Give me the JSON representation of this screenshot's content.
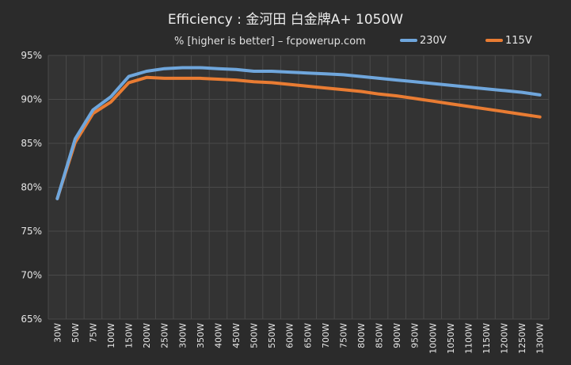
{
  "chart_data": {
    "type": "line",
    "title": "Efficiency : 金河田 白金牌A+ 1050W",
    "subtitle": "% [higher is better] – fcpowerup.com",
    "categories": [
      "30W",
      "50W",
      "75W",
      "100W",
      "150W",
      "200W",
      "250W",
      "300W",
      "350W",
      "400W",
      "450W",
      "500W",
      "550W",
      "600W",
      "650W",
      "700W",
      "750W",
      "800W",
      "850W",
      "900W",
      "950W",
      "1000W",
      "1050W",
      "1100W",
      "1150W",
      "1200W",
      "1250W",
      "1300W"
    ],
    "x": [
      30,
      50,
      75,
      100,
      150,
      200,
      250,
      300,
      350,
      400,
      450,
      500,
      550,
      600,
      650,
      700,
      750,
      800,
      850,
      900,
      950,
      1000,
      1050,
      1100,
      1150,
      1200,
      1250,
      1300
    ],
    "series": [
      {
        "name": "230V",
        "color": "#6fa6dc",
        "values": [
          78.7,
          85.5,
          88.8,
          90.3,
          92.6,
          93.2,
          93.5,
          93.6,
          93.6,
          93.5,
          93.4,
          93.2,
          93.2,
          93.1,
          93.0,
          92.9,
          92.8,
          92.6,
          92.4,
          92.2,
          92.0,
          91.8,
          91.6,
          91.4,
          91.2,
          91.0,
          90.8,
          90.5
        ]
      },
      {
        "name": "115V",
        "color": "#e97c33",
        "values": [
          78.7,
          85.1,
          88.4,
          89.7,
          91.9,
          92.5,
          92.4,
          92.4,
          92.4,
          92.3,
          92.2,
          92.0,
          91.9,
          91.7,
          91.5,
          91.3,
          91.1,
          90.9,
          90.6,
          90.4,
          90.1,
          89.8,
          89.5,
          89.2,
          88.9,
          88.6,
          88.3,
          88.0
        ]
      }
    ],
    "ylim": [
      65,
      95
    ],
    "yticks": [
      65,
      70,
      75,
      80,
      85,
      90,
      95
    ],
    "ytick_suffix": "%",
    "grid": true,
    "legend": "top-right",
    "colors": {
      "background": "#2b2b2b",
      "plot_background": "#333333",
      "grid": "#4a4a4a",
      "text": "#e6e6e6"
    }
  }
}
